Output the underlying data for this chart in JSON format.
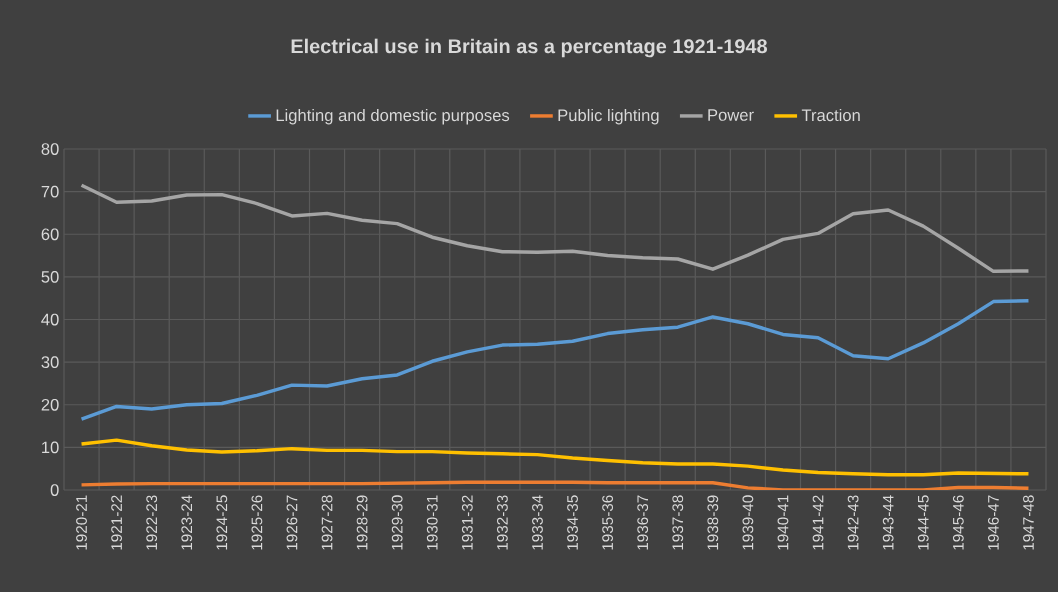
{
  "chart_data": {
    "type": "line",
    "title": "Electrical use in Britain as a percentage 1921-1948",
    "categories": [
      "1920-21",
      "1921-22",
      "1922-23",
      "1923-24",
      "1924-25",
      "1925-26",
      "1926-27",
      "1927-28",
      "1928-29",
      "1929-30",
      "1930-31",
      "1931-32",
      "1932-33",
      "1933-34",
      "1934-35",
      "1935-36",
      "1936-37",
      "1937-38",
      "1938-39",
      "1939-40",
      "1940-41",
      "1941-42",
      "1942-43",
      "1943-44",
      "1944-45",
      "1945-46",
      "1946-47",
      "1947-48"
    ],
    "series": [
      {
        "name": "Lighting and domestic purposes",
        "color": "#5b9bd5",
        "values": [
          16.6,
          19.6,
          19.0,
          20.0,
          20.3,
          22.2,
          24.6,
          24.4,
          26.1,
          27.0,
          30.2,
          32.4,
          34.0,
          34.2,
          34.9,
          36.7,
          37.6,
          38.2,
          40.6,
          39.0,
          36.5,
          35.7,
          31.5,
          30.8,
          34.5,
          39.0,
          44.2,
          44.4
        ]
      },
      {
        "name": "Public lighting",
        "color": "#ed7d31",
        "values": [
          1.2,
          1.4,
          1.5,
          1.5,
          1.5,
          1.5,
          1.5,
          1.5,
          1.5,
          1.6,
          1.7,
          1.8,
          1.8,
          1.8,
          1.8,
          1.7,
          1.7,
          1.7,
          1.7,
          0.5,
          0,
          0,
          0,
          0,
          0,
          0.6,
          0.6,
          0.4
        ]
      },
      {
        "name": "Power",
        "color": "#a5a5a5",
        "values": [
          71.5,
          67.5,
          67.8,
          69.2,
          69.3,
          67.2,
          64.3,
          64.9,
          63.3,
          62.5,
          59.3,
          57.3,
          55.9,
          55.8,
          56.0,
          55.0,
          54.5,
          54.2,
          51.8,
          55.1,
          58.8,
          60.2,
          64.8,
          65.7,
          61.9,
          56.7,
          51.3,
          51.4
        ]
      },
      {
        "name": "Traction",
        "color": "#ffc000",
        "values": [
          10.8,
          11.7,
          10.4,
          9.4,
          8.9,
          9.2,
          9.7,
          9.3,
          9.3,
          9.0,
          9.0,
          8.7,
          8.5,
          8.3,
          7.5,
          6.9,
          6.4,
          6.1,
          6.1,
          5.6,
          4.7,
          4.1,
          3.8,
          3.6,
          3.6,
          4.0,
          3.9,
          3.8
        ]
      }
    ],
    "ylim": [
      0,
      80
    ],
    "yticks": [
      0,
      10,
      20,
      30,
      40,
      50,
      60,
      70,
      80
    ],
    "grid": true,
    "legend": "top"
  }
}
